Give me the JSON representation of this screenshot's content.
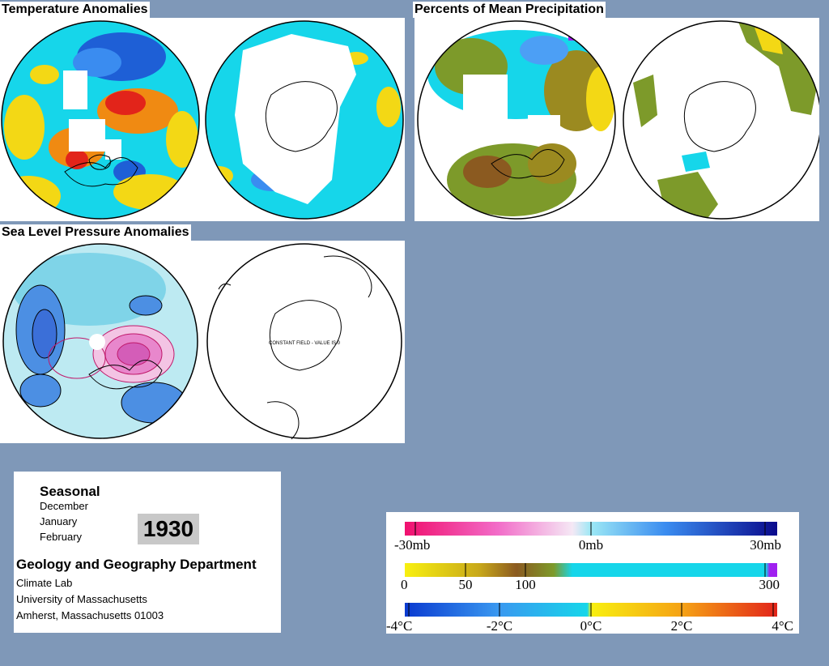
{
  "panels": {
    "temperature": {
      "title": "Temperature Anomalies"
    },
    "precipitation": {
      "title": "Percents of Mean Precipitation"
    },
    "pressure": {
      "title": "Sea Level Pressure Anomalies",
      "south_note": "CONSTANT FIELD - VALUE IS 0"
    }
  },
  "info": {
    "season": "Seasonal",
    "months": [
      "December",
      "January",
      "February"
    ],
    "year": "1930",
    "department": "Geology and Geography Department",
    "address": [
      "Climate Lab",
      "University of Massachusetts",
      "Amherst, Massachusetts 01003"
    ]
  },
  "legends": {
    "pressure": {
      "labels": [
        "-30mb",
        "0mb",
        "30mb"
      ]
    },
    "precipitation": {
      "labels": [
        "0",
        "50",
        "100",
        "300"
      ]
    },
    "temperature": {
      "labels": [
        "-4°C",
        "-2°C",
        "0°C",
        "2°C",
        "4°C"
      ]
    }
  },
  "colors": {
    "background": "#7f98b8",
    "cold": "#1e5fd6",
    "cyan": "#16d6ea",
    "yellow": "#f3d815",
    "warm": "#e2241a",
    "olive": "#7d9a2a",
    "magenta": "#e0229a"
  }
}
